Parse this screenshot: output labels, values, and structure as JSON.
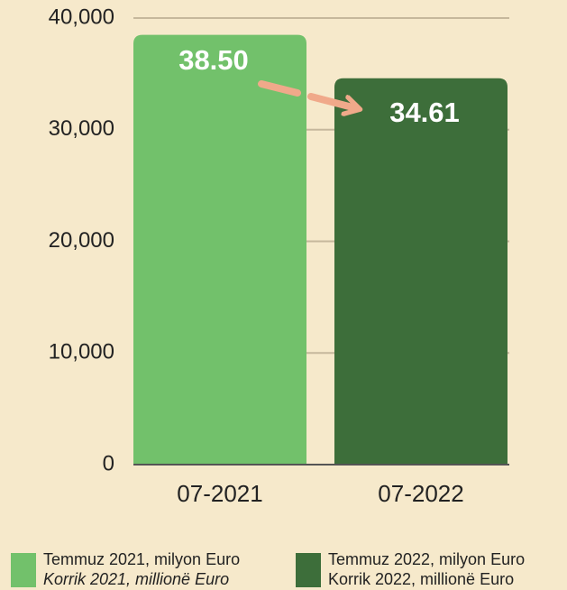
{
  "chart_data": {
    "type": "bar",
    "categories": [
      "07-2021",
      "07-2022"
    ],
    "values": [
      38500,
      34610
    ],
    "value_labels": [
      "38.50",
      "34.61"
    ],
    "colors": [
      "#72c16b",
      "#3d6e3a"
    ],
    "ylim": [
      0,
      40000
    ],
    "yticks": [
      0,
      {
        "value": 10000,
        "label": "10,000"
      },
      {
        "value": 20000,
        "label": "20,000"
      },
      {
        "value": 30000,
        "label": "30,000"
      },
      {
        "value": 40000,
        "label": "40,000"
      }
    ],
    "grid": true,
    "legend": [
      {
        "text": "Temmuz 2021, milyon Euro",
        "subtext": "Korrik 2021, millionë Euro"
      },
      {
        "text": "Temmuz 2022, milyon Euro",
        "subtext": "Korrik 2022, millionë Euro"
      }
    ]
  }
}
